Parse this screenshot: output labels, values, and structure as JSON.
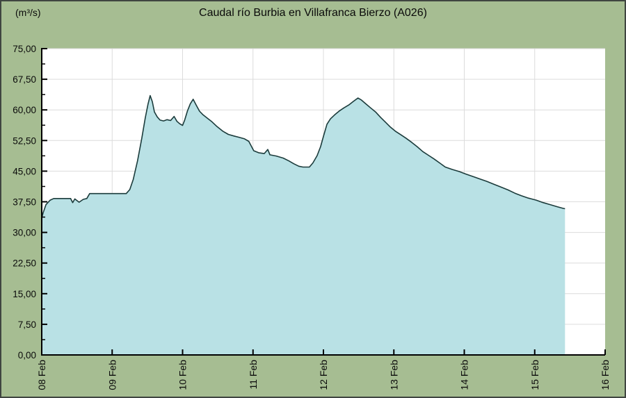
{
  "header": {
    "unit_label": "(m³/s)",
    "title": "Caudal río Burbia en Villafranca Bierzo  (A026)"
  },
  "chart_data": {
    "type": "area",
    "title": "Caudal río Burbia en Villafranca Bierzo  (A026)",
    "ylabel": "(m³/s)",
    "xlabel": "",
    "ylim": [
      0,
      75
    ],
    "grid": true,
    "legend": "none",
    "y_ticks": {
      "values": [
        0,
        7.5,
        15,
        22.5,
        30,
        37.5,
        45,
        52.5,
        60,
        67.5,
        75
      ],
      "labels": [
        "0,00",
        "7,50",
        "15,00",
        "22,50",
        "30,00",
        "37,50",
        "45,00",
        "52,50",
        "60,00",
        "67,50",
        "75,00"
      ],
      "minor_step": 3.75
    },
    "x_ticks": {
      "values": [
        0,
        1,
        2,
        3,
        4,
        5,
        6,
        7,
        8
      ],
      "labels": [
        "08 Feb",
        "09 Feb",
        "10 Feb",
        "11 Feb",
        "12 Feb",
        "13 Feb",
        "14 Feb",
        "15 Feb",
        "16 Feb"
      ]
    },
    "x_range_days": [
      0,
      8
    ],
    "series": [
      {
        "name": "Caudal (m³/s)",
        "points_day_value": [
          [
            0.0,
            33.5
          ],
          [
            0.02,
            34.8
          ],
          [
            0.06,
            36.8
          ],
          [
            0.12,
            37.9
          ],
          [
            0.17,
            38.3
          ],
          [
            0.41,
            38.3
          ],
          [
            0.44,
            37.3
          ],
          [
            0.47,
            38.2
          ],
          [
            0.53,
            37.4
          ],
          [
            0.59,
            38.1
          ],
          [
            0.64,
            38.3
          ],
          [
            0.68,
            39.5
          ],
          [
            1.2,
            39.5
          ],
          [
            1.25,
            40.5
          ],
          [
            1.3,
            43.0
          ],
          [
            1.36,
            47.5
          ],
          [
            1.42,
            53.0
          ],
          [
            1.47,
            58.0
          ],
          [
            1.51,
            61.5
          ],
          [
            1.54,
            63.5
          ],
          [
            1.57,
            62.0
          ],
          [
            1.6,
            59.5
          ],
          [
            1.64,
            58.3
          ],
          [
            1.68,
            57.5
          ],
          [
            1.73,
            57.3
          ],
          [
            1.78,
            57.6
          ],
          [
            1.83,
            57.4
          ],
          [
            1.88,
            58.4
          ],
          [
            1.92,
            57.2
          ],
          [
            1.96,
            56.6
          ],
          [
            2.0,
            56.2
          ],
          [
            2.03,
            57.5
          ],
          [
            2.07,
            59.8
          ],
          [
            2.11,
            61.5
          ],
          [
            2.15,
            62.6
          ],
          [
            2.19,
            61.3
          ],
          [
            2.24,
            59.7
          ],
          [
            2.29,
            58.8
          ],
          [
            2.35,
            58.0
          ],
          [
            2.41,
            57.2
          ],
          [
            2.49,
            55.9
          ],
          [
            2.57,
            54.8
          ],
          [
            2.65,
            54.0
          ],
          [
            2.73,
            53.6
          ],
          [
            2.8,
            53.3
          ],
          [
            2.88,
            52.9
          ],
          [
            2.94,
            52.3
          ],
          [
            3.01,
            50.0
          ],
          [
            3.08,
            49.5
          ],
          [
            3.16,
            49.3
          ],
          [
            3.21,
            50.3
          ],
          [
            3.24,
            49.0
          ],
          [
            3.33,
            48.7
          ],
          [
            3.43,
            48.2
          ],
          [
            3.51,
            47.5
          ],
          [
            3.58,
            46.8
          ],
          [
            3.65,
            46.2
          ],
          [
            3.71,
            46.0
          ],
          [
            3.8,
            46.0
          ],
          [
            3.85,
            47.0
          ],
          [
            3.91,
            48.8
          ],
          [
            3.96,
            51.0
          ],
          [
            4.0,
            53.5
          ],
          [
            4.05,
            56.5
          ],
          [
            4.1,
            57.8
          ],
          [
            4.16,
            58.8
          ],
          [
            4.23,
            59.8
          ],
          [
            4.29,
            60.5
          ],
          [
            4.36,
            61.2
          ],
          [
            4.42,
            62.0
          ],
          [
            4.49,
            62.9
          ],
          [
            4.54,
            62.4
          ],
          [
            4.6,
            61.5
          ],
          [
            4.67,
            60.5
          ],
          [
            4.74,
            59.5
          ],
          [
            4.81,
            58.2
          ],
          [
            4.88,
            57.0
          ],
          [
            4.95,
            55.8
          ],
          [
            5.02,
            54.8
          ],
          [
            5.1,
            53.9
          ],
          [
            5.17,
            53.1
          ],
          [
            5.25,
            52.1
          ],
          [
            5.33,
            51.0
          ],
          [
            5.41,
            49.8
          ],
          [
            5.49,
            48.9
          ],
          [
            5.57,
            48.0
          ],
          [
            5.65,
            47.0
          ],
          [
            5.73,
            46.0
          ],
          [
            5.83,
            45.4
          ],
          [
            5.93,
            44.9
          ],
          [
            6.02,
            44.3
          ],
          [
            6.12,
            43.7
          ],
          [
            6.22,
            43.1
          ],
          [
            6.32,
            42.5
          ],
          [
            6.42,
            41.8
          ],
          [
            6.52,
            41.1
          ],
          [
            6.62,
            40.4
          ],
          [
            6.72,
            39.6
          ],
          [
            6.81,
            39.0
          ],
          [
            6.91,
            38.4
          ],
          [
            7.02,
            37.9
          ],
          [
            7.12,
            37.3
          ],
          [
            7.22,
            36.8
          ],
          [
            7.32,
            36.3
          ],
          [
            7.4,
            35.9
          ],
          [
            7.43,
            35.8
          ]
        ]
      }
    ],
    "colors": {
      "background": "#a6bd92",
      "plot_background": "#ffffff",
      "area_fill": "#b9e1e5",
      "line": "#1b3b3b",
      "grid": "#dcdcdc",
      "axis": "#000000",
      "text": "#0a0a0a"
    }
  }
}
